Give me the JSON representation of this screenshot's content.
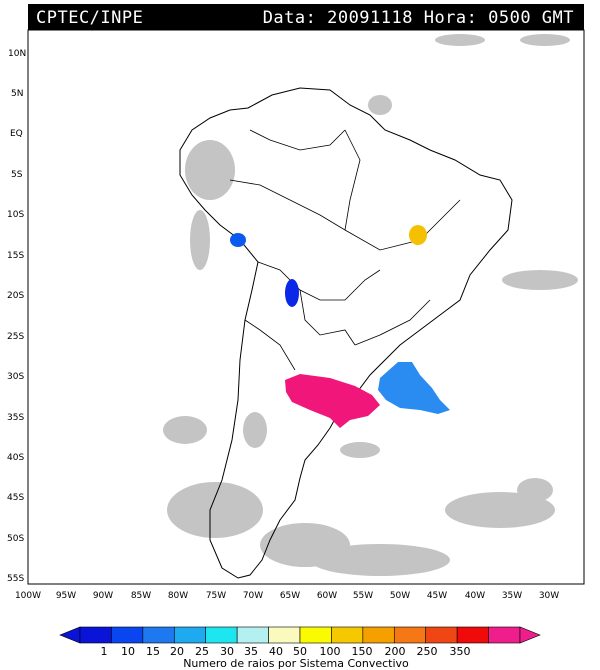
{
  "header": {
    "source": "CPTEC/INPE",
    "datetime": "Data: 20091118 Hora: 0500 GMT"
  },
  "map": {
    "lat_labels": [
      "10N",
      "5N",
      "EQ",
      "5S",
      "10S",
      "15S",
      "20S",
      "25S",
      "30S",
      "35S",
      "40S",
      "45S",
      "50S",
      "55S"
    ],
    "lon_labels": [
      "100W",
      "95W",
      "90W",
      "85W",
      "80W",
      "75W",
      "70W",
      "65W",
      "60W",
      "55W",
      "50W",
      "45W",
      "40W",
      "35W",
      "30W"
    ],
    "lat_range": [
      -56,
      12
    ],
    "lon_range": [
      -100,
      -28
    ],
    "colors": {
      "background": "#ffffff",
      "coast": "#000000",
      "satellite_cloud": "#bdbdbd"
    },
    "convective_systems": [
      {
        "center_lon": -73.4,
        "center_lat": -13.3,
        "category": "10",
        "color": "#0a5af0"
      },
      {
        "center_lon": -65.8,
        "center_lat": -19.6,
        "category": "1",
        "color": "#0a28e6"
      },
      {
        "center_lon": -47.5,
        "center_lat": -12.8,
        "category": "50",
        "color": "#f5c000"
      },
      {
        "center_lon": -58.5,
        "center_lat": -32.2,
        "category": "350",
        "color": "#f0167a"
      },
      {
        "center_lon": -49.0,
        "center_lat": -31.7,
        "category": "15",
        "color": "#2a8cf0"
      }
    ]
  },
  "legend": {
    "labels": [
      "1",
      "10",
      "15",
      "20",
      "25",
      "30",
      "35",
      "40",
      "50",
      "100",
      "150",
      "200",
      "250",
      "350"
    ],
    "colors": [
      "#0a14d8",
      "#0a46f0",
      "#1e78f0",
      "#1eaaf0",
      "#1ee6f0",
      "#b4f0f0",
      "#fafabe",
      "#fafa00",
      "#f5c800",
      "#f5a000",
      "#f57814",
      "#f04614",
      "#f00a0a",
      "#f01e8c"
    ],
    "caption": "Numero de raios por Sistema Convectivo"
  }
}
